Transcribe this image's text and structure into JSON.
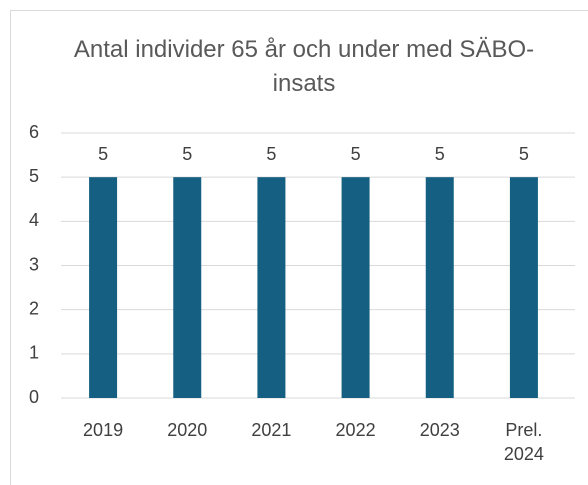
{
  "chart_data": {
    "type": "bar",
    "title": "Antal individer 65 år och under med SÄBO-insats",
    "categories": [
      "2019",
      "2020",
      "2021",
      "2022",
      "2023",
      "Prel. 2024"
    ],
    "values": [
      5,
      5,
      5,
      5,
      5,
      5
    ],
    "color": "#156082",
    "ylim": [
      0,
      6
    ],
    "yticks": [
      0,
      1,
      2,
      3,
      4,
      5,
      6
    ],
    "grid": true
  }
}
